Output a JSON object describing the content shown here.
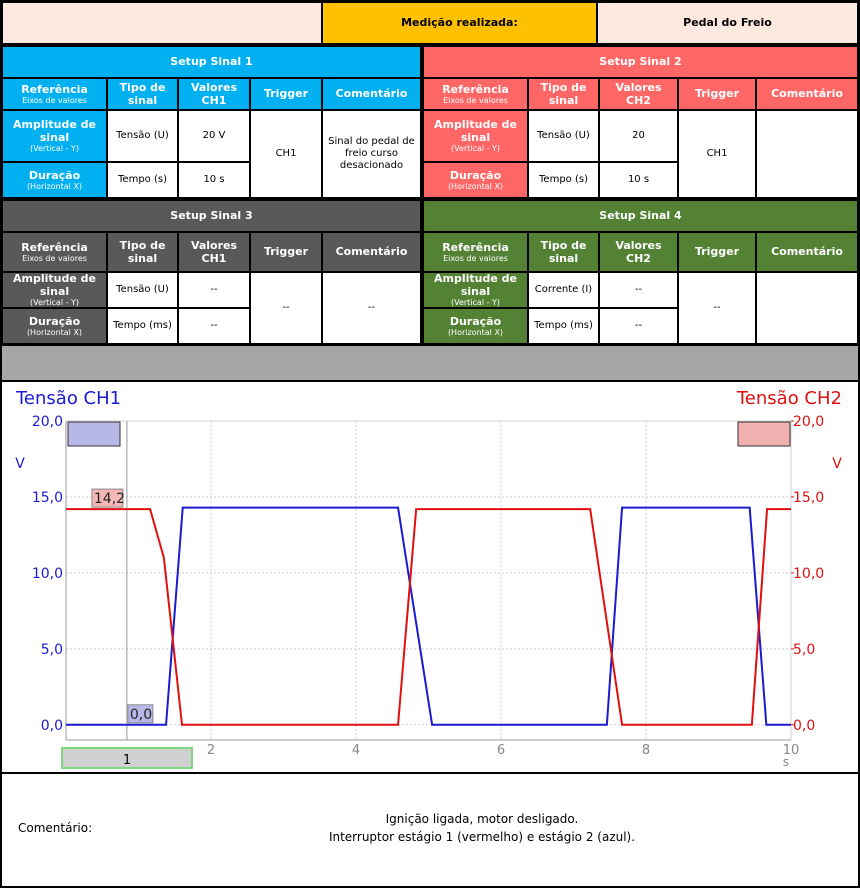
{
  "header": {
    "label": "Medição realizada:",
    "value": "Pedal do Freio"
  },
  "setups": [
    {
      "title": "Setup Sinal 1",
      "color": "#00b0f0",
      "columns": [
        {
          "title": "Referência",
          "sub": "Eixos de valores"
        },
        "Tipo de sinal",
        "Valores CH1",
        "Trigger",
        "Comentário"
      ],
      "rows": [
        {
          "ref": {
            "title": "Amplitude de sinal",
            "sub": "(Vertical - Y)"
          },
          "type": "Tensão (U)",
          "value": "20 V"
        },
        {
          "ref": {
            "title": "Duração",
            "sub": "(Horizontal X)"
          },
          "type": "Tempo (s)",
          "value": "10 s"
        }
      ],
      "trigger": "CH1",
      "comment": "Sinal do pedal de freio curso desacionado"
    },
    {
      "title": "Setup Sinal 2",
      "color": "#ff6666",
      "columns": [
        {
          "title": "Referência",
          "sub": "Eixos de valores"
        },
        "Tipo de sinal",
        "Valores CH2",
        "Trigger",
        "Comentário"
      ],
      "rows": [
        {
          "ref": {
            "title": "Amplitude de sinal",
            "sub": "(Vertical - Y)"
          },
          "type": "Tensão (U)",
          "value": "20"
        },
        {
          "ref": {
            "title": "Duração",
            "sub": "(Horizontal X)"
          },
          "type": "Tempo (s)",
          "value": "10 s"
        }
      ],
      "trigger": "CH1"
    },
    {
      "title": "Setup Sinal 3",
      "color": "#595959",
      "columns": [
        {
          "title": "Referência",
          "sub": "Eixos de valores"
        },
        "Tipo de sinal",
        "Valores CH1",
        "Trigger",
        "Comentário"
      ],
      "rows": [
        {
          "ref": {
            "title": "Amplitude de sinal",
            "sub": "(Vertical - Y)"
          },
          "type": "Tensão (U)",
          "value": "--"
        },
        {
          "ref": {
            "title": "Duração",
            "sub": "(Horizontal X)"
          },
          "type": "Tempo (ms)",
          "value": "--"
        }
      ],
      "trigger": "--",
      "comment": "--"
    },
    {
      "title": "Setup Sinal 4",
      "color": "#548235",
      "columns": [
        {
          "title": "Referência",
          "sub": "Eixos de valores"
        },
        "Tipo de sinal",
        "Valores CH2",
        "Trigger",
        "Comentário"
      ],
      "rows": [
        {
          "ref": {
            "title": "Amplitude de sinal",
            "sub": "(Vertical - Y)"
          },
          "type": "Corrente (I)",
          "value": "--"
        },
        {
          "ref": {
            "title": "Duração",
            "sub": "(Horizontal X)"
          },
          "type": "Tempo (ms)",
          "value": "--"
        }
      ],
      "trigger": "--"
    }
  ],
  "chart_data": {
    "type": "line",
    "xlim": [
      0,
      10
    ],
    "xticks": [
      2,
      4,
      6,
      8,
      10
    ],
    "xlabel": "s",
    "ylim": [
      -1,
      20
    ],
    "ylabel": "V",
    "yticks": [
      {
        "value": 0,
        "label": "0,0"
      },
      {
        "value": 5,
        "label": "5,0"
      },
      {
        "value": 10,
        "label": "10,0"
      },
      {
        "value": 15,
        "label": "15,0"
      },
      {
        "value": 20,
        "label": "20,0"
      }
    ],
    "y2lim": [
      -1,
      20
    ],
    "y2label": "V",
    "y2ticks": [
      {
        "value": 0,
        "label": "0,0"
      },
      {
        "value": 5,
        "label": "5,0"
      },
      {
        "value": 10,
        "label": "10,0"
      },
      {
        "value": 15,
        "label": "15,0"
      },
      {
        "value": 20,
        "label": "20,0"
      }
    ],
    "grid": true,
    "cursor": {
      "label": "1",
      "x": 0.84
    },
    "series": [
      {
        "name": "Tensão CH1",
        "color": "#1a1ad0",
        "x": [
          0,
          1.38,
          1.61,
          4.58,
          5.05,
          7.46,
          7.67,
          9.43,
          9.66,
          10
        ],
        "values": [
          0,
          0,
          14.3,
          14.3,
          0,
          0,
          14.3,
          14.3,
          0,
          0
        ],
        "cursor_reading": {
          "value": 0,
          "label": "0,0"
        }
      },
      {
        "name": "Tensão CH2",
        "color": "#e01010",
        "axis": "y2",
        "x": [
          0,
          1.16,
          1.35,
          1.6,
          4.58,
          4.83,
          7.23,
          7.67,
          9.46,
          9.67,
          10
        ],
        "values": [
          14.2,
          14.2,
          11,
          0,
          0,
          14.2,
          14.2,
          0,
          0,
          14.2,
          14.2
        ],
        "cursor_reading": {
          "value": 14.2,
          "label": "14,2"
        }
      }
    ]
  },
  "comment": {
    "label": "Comentário:",
    "lines": [
      "Ignição ligada, motor desligado.",
      "Interruptor estágio 1 (vermelho) e estágio 2 (azul)."
    ]
  }
}
